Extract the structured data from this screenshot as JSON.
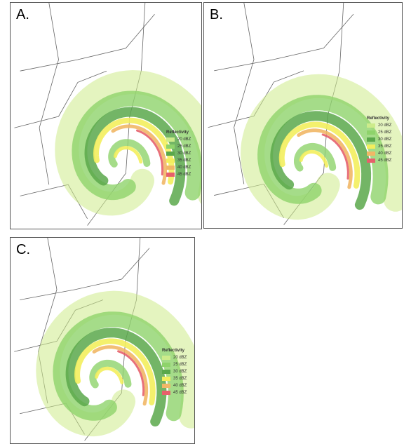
{
  "panels": [
    {
      "label": "A.",
      "legend": {
        "title": "Reflectivity",
        "entries": [
          {
            "label": "20 dBZ",
            "color": "#cdeb8b"
          },
          {
            "label": "25 dBZ",
            "color": "#8ed36b"
          },
          {
            "label": "30 dBZ",
            "color": "#5aa84b"
          },
          {
            "label": "35 dBZ",
            "color": "#f3ee5d"
          },
          {
            "label": "40 dBZ",
            "color": "#f1b766"
          },
          {
            "label": "45 dBZ",
            "color": "#e6606b"
          }
        ]
      }
    },
    {
      "label": "B.",
      "legend": {
        "title": "Reflectivity",
        "entries": [
          {
            "label": "20 dBZ",
            "color": "#cdeb8b"
          },
          {
            "label": "25 dBZ",
            "color": "#8ed36b"
          },
          {
            "label": "30 dBZ",
            "color": "#5aa84b"
          },
          {
            "label": "35 dBZ",
            "color": "#f3ee5d"
          },
          {
            "label": "40 dBZ",
            "color": "#f1b766"
          },
          {
            "label": "45 dBZ",
            "color": "#e6606b"
          }
        ]
      }
    },
    {
      "label": "C.",
      "legend": {
        "title": "Reflectivity",
        "entries": [
          {
            "label": "20 dBZ",
            "color": "#cdeb8b"
          },
          {
            "label": "25 dBZ",
            "color": "#8ed36b"
          },
          {
            "label": "30 dBZ",
            "color": "#5aa84b"
          },
          {
            "label": "35 dBZ",
            "color": "#f3ee5d"
          },
          {
            "label": "40 dBZ",
            "color": "#f1b766"
          },
          {
            "label": "45 dBZ",
            "color": "#e6606b"
          }
        ]
      }
    }
  ]
}
